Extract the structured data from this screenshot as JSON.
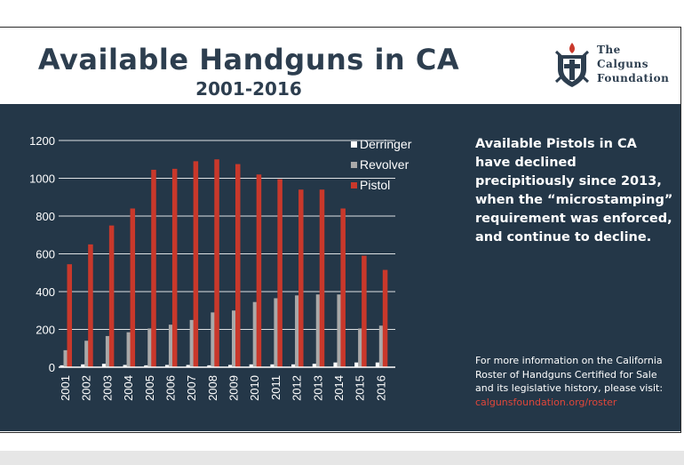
{
  "header": {
    "title": "Available Handguns in CA",
    "subtitle": "2001-2016"
  },
  "logo": {
    "line1": "The",
    "line2": "Calguns",
    "line3": "Foundation"
  },
  "callout": {
    "text": "Available Pistols in CA have declined precipitiously since 2013, when the “microstamping” requirement was enforced, and continue to decline."
  },
  "info": {
    "text": "For more information on the California Roster of Handguns Certified for Sale and its legislative history, please visit:",
    "link": "calgunsfoundation.org/roster"
  },
  "colors": {
    "background": "#243748",
    "pistol": "#c9382b",
    "revolver": "#a9a9a9",
    "derringer": "#ffffff",
    "accent_link": "#e0463a",
    "title": "#2d3e4f"
  },
  "chart_data": {
    "type": "bar",
    "categories": [
      "2001",
      "2002",
      "2003",
      "2004",
      "2005",
      "2006",
      "2007",
      "2008",
      "2009",
      "2010",
      "2011",
      "2012",
      "2013",
      "2014",
      "2015",
      "2016"
    ],
    "series": [
      {
        "name": "Derringer",
        "values": [
          10,
          15,
          18,
          12,
          10,
          12,
          12,
          10,
          12,
          15,
          15,
          15,
          18,
          25,
          25,
          25
        ]
      },
      {
        "name": "Revolver",
        "values": [
          90,
          140,
          165,
          185,
          205,
          225,
          250,
          290,
          300,
          345,
          365,
          380,
          385,
          385,
          205,
          220
        ]
      },
      {
        "name": "Pistol",
        "values": [
          545,
          650,
          750,
          840,
          1045,
          1050,
          1090,
          1100,
          1075,
          1020,
          995,
          940,
          940,
          840,
          590,
          515
        ]
      }
    ],
    "ylim": [
      0,
      1200
    ],
    "yticks": [
      "0",
      "200",
      "400",
      "600",
      "800",
      "1000",
      "1200"
    ],
    "grid": true,
    "legend": "top-right"
  }
}
